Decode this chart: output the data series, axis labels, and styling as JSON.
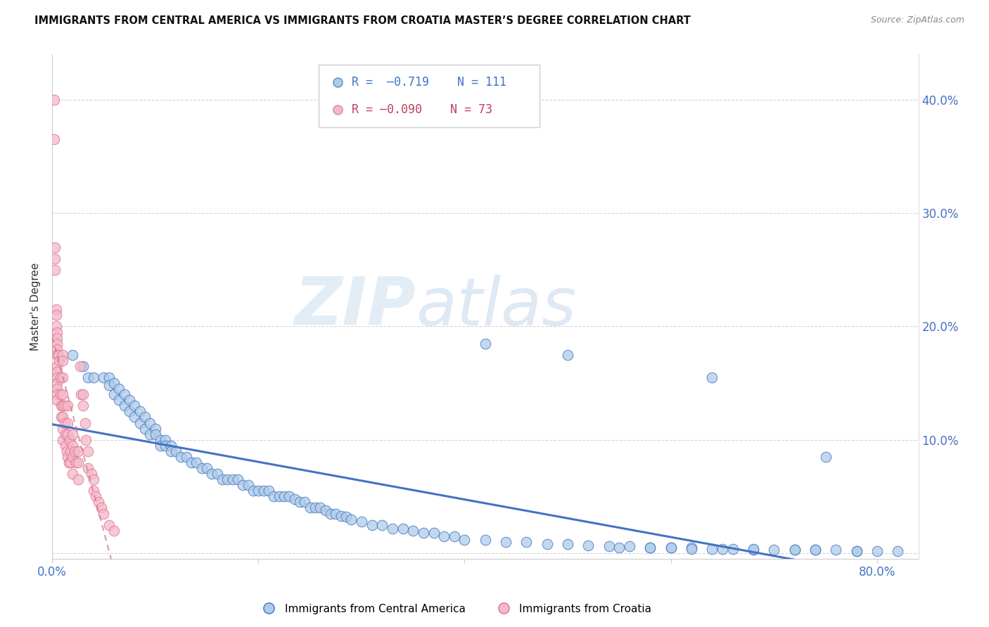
{
  "title": "IMMIGRANTS FROM CENTRAL AMERICA VS IMMIGRANTS FROM CROATIA MASTER’S DEGREE CORRELATION CHART",
  "source": "Source: ZipAtlas.com",
  "ylabel": "Master's Degree",
  "xlim": [
    0.0,
    0.84
  ],
  "ylim": [
    -0.005,
    0.44
  ],
  "r_blue": -0.719,
  "n_blue": 111,
  "r_pink": -0.09,
  "n_pink": 73,
  "legend_label_blue": "Immigrants from Central America",
  "legend_label_pink": "Immigrants from Croatia",
  "blue_color": "#aecce8",
  "blue_line_color": "#4472c4",
  "pink_color": "#f5b8cb",
  "pink_line_color": "#d9748a",
  "watermark_zip": "ZIP",
  "watermark_atlas": "atlas",
  "blue_scatter_x": [
    0.02,
    0.03,
    0.035,
    0.04,
    0.05,
    0.055,
    0.055,
    0.06,
    0.06,
    0.065,
    0.065,
    0.07,
    0.07,
    0.075,
    0.075,
    0.08,
    0.08,
    0.085,
    0.085,
    0.09,
    0.09,
    0.095,
    0.095,
    0.1,
    0.1,
    0.105,
    0.105,
    0.11,
    0.11,
    0.115,
    0.115,
    0.12,
    0.125,
    0.13,
    0.135,
    0.14,
    0.145,
    0.15,
    0.155,
    0.16,
    0.165,
    0.17,
    0.175,
    0.18,
    0.185,
    0.19,
    0.195,
    0.2,
    0.205,
    0.21,
    0.215,
    0.22,
    0.225,
    0.23,
    0.235,
    0.24,
    0.245,
    0.25,
    0.255,
    0.26,
    0.265,
    0.27,
    0.275,
    0.28,
    0.285,
    0.29,
    0.3,
    0.31,
    0.32,
    0.33,
    0.34,
    0.35,
    0.36,
    0.37,
    0.38,
    0.39,
    0.4,
    0.42,
    0.44,
    0.46,
    0.48,
    0.5,
    0.52,
    0.54,
    0.56,
    0.58,
    0.6,
    0.62,
    0.64,
    0.66,
    0.68,
    0.72,
    0.74,
    0.76,
    0.78,
    0.8,
    0.42,
    0.5,
    0.64,
    0.75,
    0.55,
    0.58,
    0.6,
    0.62,
    0.65,
    0.68,
    0.7,
    0.72,
    0.74,
    0.78,
    0.82
  ],
  "blue_scatter_y": [
    0.175,
    0.165,
    0.155,
    0.155,
    0.155,
    0.155,
    0.148,
    0.15,
    0.14,
    0.145,
    0.135,
    0.14,
    0.13,
    0.135,
    0.125,
    0.13,
    0.12,
    0.125,
    0.115,
    0.12,
    0.11,
    0.115,
    0.105,
    0.11,
    0.105,
    0.1,
    0.095,
    0.1,
    0.095,
    0.095,
    0.09,
    0.09,
    0.085,
    0.085,
    0.08,
    0.08,
    0.075,
    0.075,
    0.07,
    0.07,
    0.065,
    0.065,
    0.065,
    0.065,
    0.06,
    0.06,
    0.055,
    0.055,
    0.055,
    0.055,
    0.05,
    0.05,
    0.05,
    0.05,
    0.048,
    0.045,
    0.045,
    0.04,
    0.04,
    0.04,
    0.038,
    0.035,
    0.035,
    0.033,
    0.032,
    0.03,
    0.028,
    0.025,
    0.025,
    0.022,
    0.022,
    0.02,
    0.018,
    0.018,
    0.015,
    0.015,
    0.012,
    0.012,
    0.01,
    0.01,
    0.008,
    0.008,
    0.007,
    0.006,
    0.006,
    0.005,
    0.005,
    0.005,
    0.004,
    0.004,
    0.003,
    0.003,
    0.003,
    0.003,
    0.002,
    0.002,
    0.185,
    0.175,
    0.155,
    0.085,
    0.005,
    0.005,
    0.005,
    0.004,
    0.004,
    0.004,
    0.003,
    0.003,
    0.003,
    0.002,
    0.002
  ],
  "pink_scatter_x": [
    0.002,
    0.002,
    0.003,
    0.003,
    0.003,
    0.004,
    0.004,
    0.004,
    0.005,
    0.005,
    0.005,
    0.005,
    0.005,
    0.005,
    0.005,
    0.005,
    0.005,
    0.005,
    0.005,
    0.005,
    0.006,
    0.007,
    0.008,
    0.008,
    0.009,
    0.009,
    0.01,
    0.01,
    0.01,
    0.01,
    0.01,
    0.01,
    0.01,
    0.01,
    0.012,
    0.012,
    0.013,
    0.013,
    0.014,
    0.015,
    0.015,
    0.015,
    0.015,
    0.016,
    0.017,
    0.018,
    0.018,
    0.02,
    0.02,
    0.02,
    0.02,
    0.022,
    0.023,
    0.025,
    0.025,
    0.025,
    0.027,
    0.028,
    0.03,
    0.03,
    0.032,
    0.033,
    0.035,
    0.035,
    0.038,
    0.04,
    0.04,
    0.042,
    0.045,
    0.048,
    0.05,
    0.055,
    0.06
  ],
  "pink_scatter_y": [
    0.4,
    0.365,
    0.27,
    0.26,
    0.25,
    0.215,
    0.21,
    0.2,
    0.195,
    0.19,
    0.185,
    0.18,
    0.175,
    0.165,
    0.16,
    0.155,
    0.15,
    0.145,
    0.14,
    0.135,
    0.175,
    0.17,
    0.155,
    0.14,
    0.13,
    0.12,
    0.175,
    0.17,
    0.155,
    0.14,
    0.13,
    0.12,
    0.11,
    0.1,
    0.13,
    0.115,
    0.105,
    0.095,
    0.09,
    0.13,
    0.115,
    0.105,
    0.085,
    0.08,
    0.1,
    0.09,
    0.08,
    0.105,
    0.095,
    0.085,
    0.07,
    0.09,
    0.08,
    0.09,
    0.08,
    0.065,
    0.165,
    0.14,
    0.14,
    0.13,
    0.115,
    0.1,
    0.09,
    0.075,
    0.07,
    0.065,
    0.055,
    0.05,
    0.045,
    0.04,
    0.035,
    0.025,
    0.02
  ]
}
